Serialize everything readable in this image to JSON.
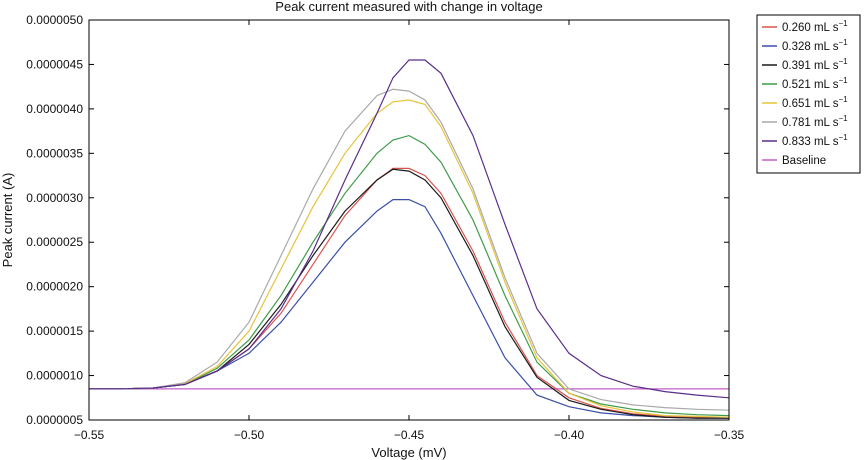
{
  "chart_data": {
    "type": "line",
    "title": "Peak current measured with change in voltage",
    "xlabel": "Voltage (mV)",
    "ylabel": "Peak current (A)",
    "xlim": [
      -0.55,
      -0.35
    ],
    "ylim": [
      5e-07,
      5e-06
    ],
    "xticks": [
      -0.55,
      -0.5,
      -0.45,
      -0.4,
      -0.35
    ],
    "xtick_labels": [
      "−0.55",
      "−0.50",
      "−0.45",
      "−0.40",
      "−0.35"
    ],
    "yticks": [
      5e-07,
      1e-06,
      1.5e-06,
      2e-06,
      2.5e-06,
      3e-06,
      3.5e-06,
      4e-06,
      4.5e-06,
      5e-06
    ],
    "ytick_labels": [
      "0.0000005",
      "0.0000010",
      "0.0000015",
      "0.0000020",
      "0.0000025",
      "0.0000030",
      "0.0000035",
      "0.0000040",
      "0.0000045",
      "0.0000050"
    ],
    "grid": false,
    "legend_position": "outside-top-right",
    "x": [
      -0.55,
      -0.54,
      -0.53,
      -0.52,
      -0.51,
      -0.5,
      -0.49,
      -0.48,
      -0.47,
      -0.46,
      -0.455,
      -0.45,
      -0.445,
      -0.44,
      -0.43,
      -0.42,
      -0.41,
      -0.4,
      -0.39,
      -0.38,
      -0.37,
      -0.36,
      -0.35
    ],
    "series": [
      {
        "name": "0.260 mL s",
        "unit_suffix": "−1",
        "color": "#d9534f",
        "values": [
          8.5e-07,
          8.5e-07,
          8.6e-07,
          9e-07,
          1.05e-06,
          1.3e-06,
          1.7e-06,
          2.25e-06,
          2.8e-06,
          3.2e-06,
          3.33e-06,
          3.33e-06,
          3.25e-06,
          3.05e-06,
          2.4e-06,
          1.6e-06,
          1e-06,
          7.5e-07,
          6.3e-07,
          5.7e-07,
          5.4e-07,
          5.3e-07,
          5.2e-07
        ]
      },
      {
        "name": "0.328 mL s",
        "unit_suffix": "−1",
        "color": "#3a4fa8",
        "values": [
          8.5e-07,
          8.5e-07,
          8.6e-07,
          9e-07,
          1.05e-06,
          1.25e-06,
          1.6e-06,
          2.05e-06,
          2.5e-06,
          2.85e-06,
          2.98e-06,
          2.98e-06,
          2.9e-06,
          2.6e-06,
          1.9e-06,
          1.2e-06,
          7.8e-07,
          6.5e-07,
          5.8e-07,
          5.5e-07,
          5.3e-07,
          5.2e-07,
          5.2e-07
        ]
      },
      {
        "name": "0.391 mL s",
        "unit_suffix": "−1",
        "color": "#1a1a1a",
        "values": [
          8.5e-07,
          8.5e-07,
          8.6e-07,
          9e-07,
          1.05e-06,
          1.35e-06,
          1.8e-06,
          2.35e-06,
          2.85e-06,
          3.2e-06,
          3.32e-06,
          3.3e-06,
          3.2e-06,
          3e-06,
          2.35e-06,
          1.55e-06,
          9.8e-07,
          7.2e-07,
          6.2e-07,
          5.6e-07,
          5.3e-07,
          5.2e-07,
          5.2e-07
        ]
      },
      {
        "name": "0.521 mL s",
        "unit_suffix": "−1",
        "color": "#3f9a48",
        "values": [
          8.5e-07,
          8.5e-07,
          8.6e-07,
          9e-07,
          1.08e-06,
          1.4e-06,
          1.9e-06,
          2.5e-06,
          3.05e-06,
          3.5e-06,
          3.65e-06,
          3.7e-06,
          3.6e-06,
          3.4e-06,
          2.75e-06,
          1.9e-06,
          1.15e-06,
          8e-07,
          6.8e-07,
          6.2e-07,
          5.8e-07,
          5.6e-07,
          5.5e-07
        ]
      },
      {
        "name": "0.651 mL s",
        "unit_suffix": "−1",
        "color": "#e8c33a",
        "values": [
          8.5e-07,
          8.5e-07,
          8.6e-07,
          9.1e-07,
          1.1e-06,
          1.5e-06,
          2.2e-06,
          2.9e-06,
          3.5e-06,
          3.95e-06,
          4.08e-06,
          4.1e-06,
          4.05e-06,
          3.8e-06,
          3.05e-06,
          2.05e-06,
          1.2e-06,
          8e-07,
          6.6e-07,
          5.9e-07,
          5.5e-07,
          5.4e-07,
          5.3e-07
        ]
      },
      {
        "name": "0.781 mL s",
        "unit_suffix": "−1",
        "color": "#a9a9a9",
        "values": [
          8.5e-07,
          8.5e-07,
          8.6e-07,
          9.2e-07,
          1.15e-06,
          1.6e-06,
          2.35e-06,
          3.1e-06,
          3.75e-06,
          4.15e-06,
          4.22e-06,
          4.2e-06,
          4.1e-06,
          3.85e-06,
          3.1e-06,
          2.1e-06,
          1.25e-06,
          8.5e-07,
          7.3e-07,
          6.7e-07,
          6.4e-07,
          6.2e-07,
          6.1e-07
        ]
      },
      {
        "name": "0.833 mL s",
        "unit_suffix": "−1",
        "color": "#5a2d8c",
        "values": [
          8.5e-07,
          8.5e-07,
          8.6e-07,
          9e-07,
          1.05e-06,
          1.3e-06,
          1.75e-06,
          2.4e-06,
          3.2e-06,
          3.95e-06,
          4.35e-06,
          4.55e-06,
          4.55e-06,
          4.4e-06,
          3.7e-06,
          2.7e-06,
          1.75e-06,
          1.25e-06,
          1e-06,
          8.8e-07,
          8.2e-07,
          7.8e-07,
          7.5e-07
        ]
      },
      {
        "name": "Baseline",
        "unit_suffix": "",
        "color": "#c45ec9",
        "values": [
          8.5e-07,
          8.5e-07,
          8.5e-07,
          8.5e-07,
          8.5e-07,
          8.5e-07,
          8.5e-07,
          8.5e-07,
          8.5e-07,
          8.5e-07,
          8.5e-07,
          8.5e-07,
          8.5e-07,
          8.5e-07,
          8.5e-07,
          8.5e-07,
          8.5e-07,
          8.5e-07,
          8.5e-07,
          8.5e-07,
          8.5e-07,
          8.5e-07,
          8.5e-07
        ]
      }
    ]
  }
}
